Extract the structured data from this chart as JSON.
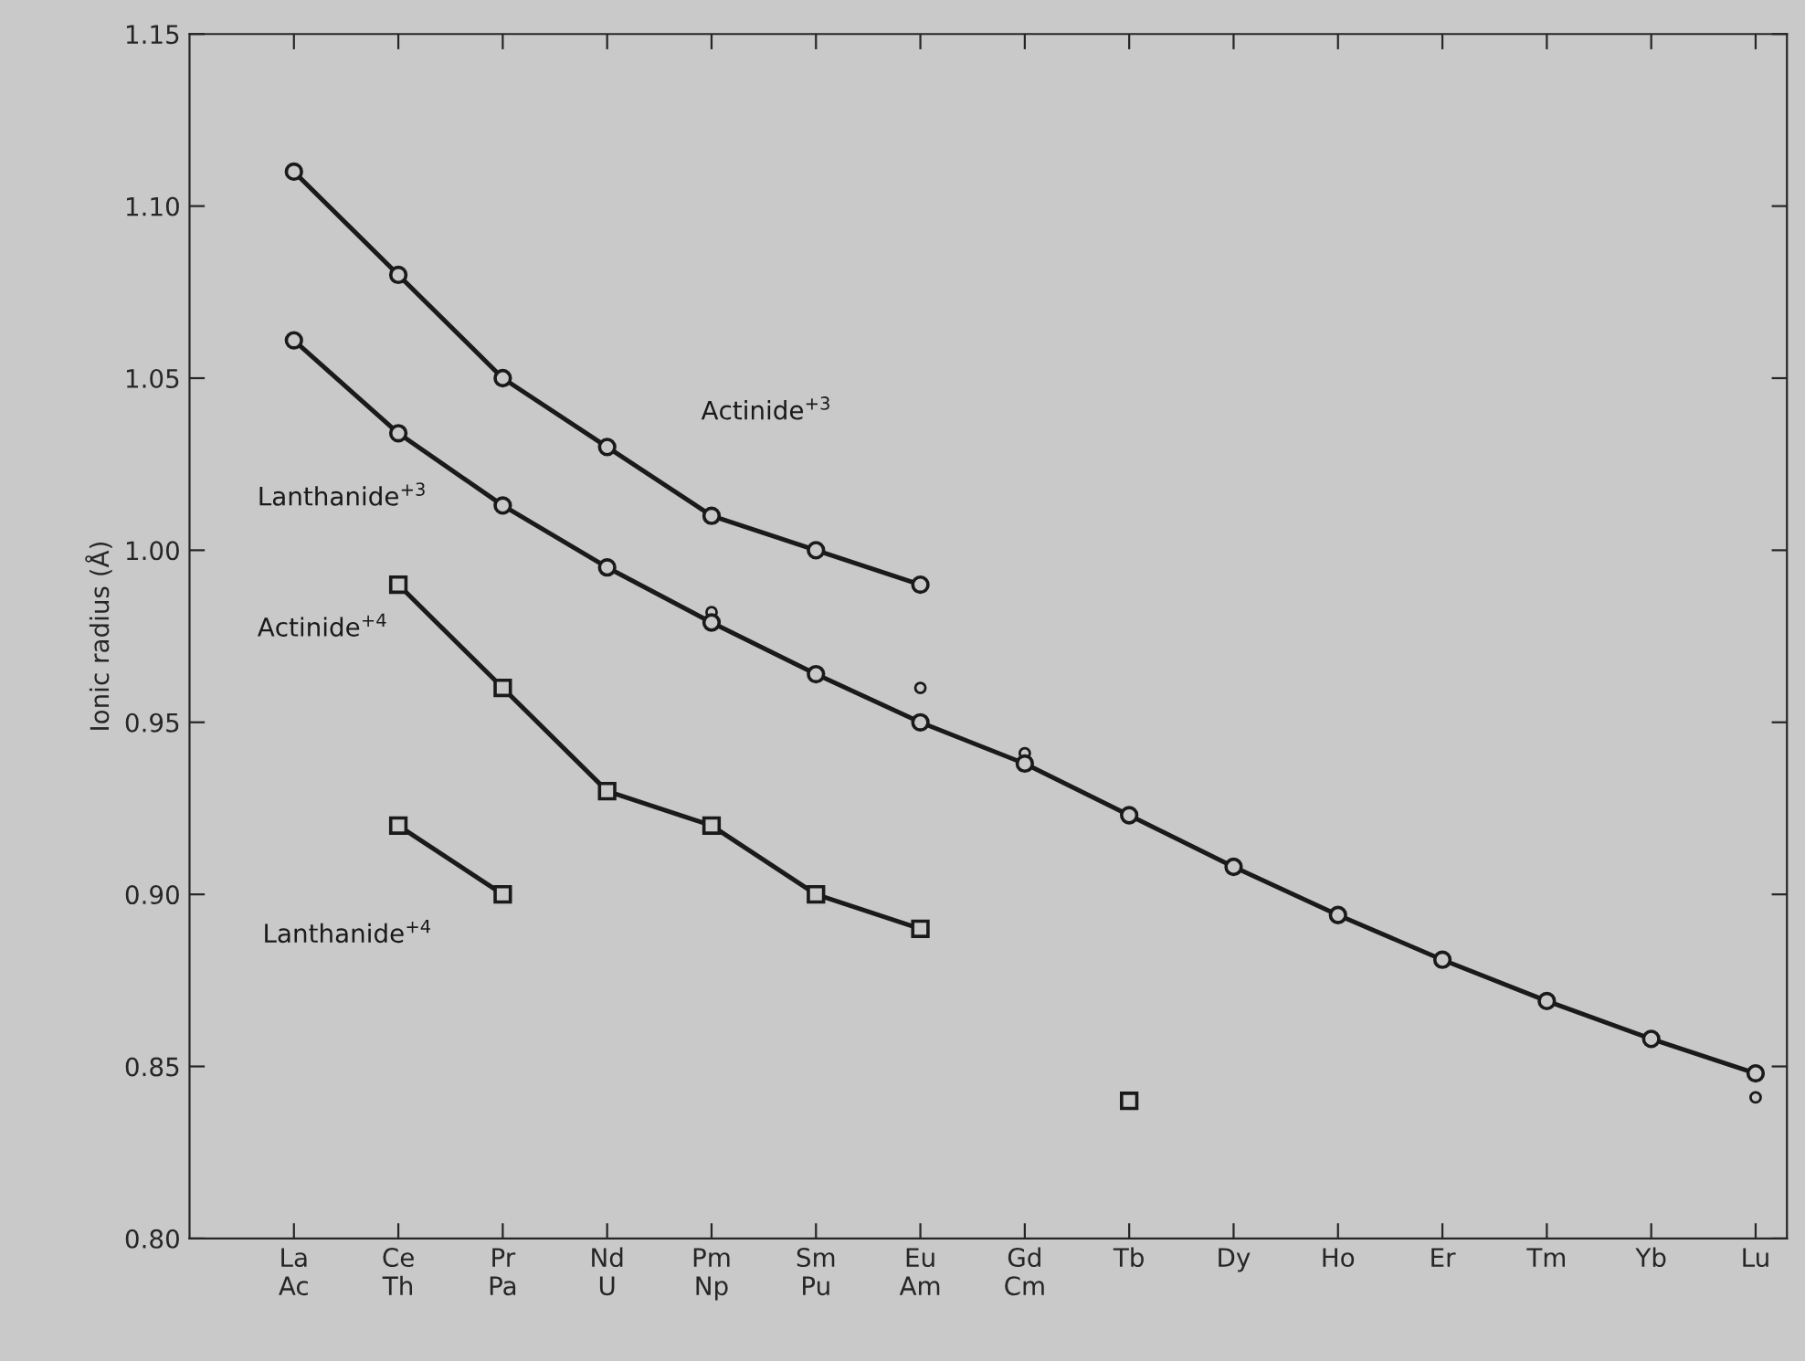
{
  "chart_data": {
    "type": "line",
    "ylabel": "Ionic radius (Å)",
    "categories": [
      "La\nAc",
      "Ce\nTh",
      "Pr\nPa",
      "Nd\nU",
      "Pm\nNp",
      "Sm\nPu",
      "Eu\nAm",
      "Gd\nCm",
      "Tb",
      "Dy",
      "Ho",
      "Er",
      "Tm",
      "Yb",
      "Lu"
    ],
    "series": [
      {
        "name": "Actinide$^{+3}$",
        "color": "#1a1a1a",
        "marker": "circle",
        "values": [
          1.11,
          1.08,
          1.05,
          1.03,
          1.01,
          1.0,
          0.99,
          null,
          null,
          null,
          null,
          null,
          null,
          null,
          null
        ]
      },
      {
        "name": "Lanthanide$^{+3}$",
        "color": "#1a1a1a",
        "marker": "circle",
        "values": [
          1.061,
          1.034,
          1.013,
          0.995,
          0.979,
          0.964,
          0.95,
          0.938,
          0.923,
          0.908,
          0.894,
          0.881,
          0.869,
          0.858,
          0.848
        ]
      },
      {
        "type": "scatter",
        "color": "#1a1a1a",
        "marker": "circle",
        "values": [
          null,
          null,
          null,
          null,
          0.982,
          null,
          0.96,
          0.941,
          null,
          null,
          null,
          null,
          null,
          null,
          0.841
        ]
      },
      {
        "name": "Actinide$^{+4}$",
        "color": "#1a1a1a",
        "marker": "square",
        "values": [
          null,
          0.99,
          0.96,
          0.93,
          0.92,
          0.9,
          0.89,
          null,
          null,
          null,
          null,
          null,
          null,
          null,
          null
        ]
      },
      {
        "name": "Lanthanide$^{+4}$",
        "color": "#1a1a1a",
        "marker": "square",
        "values": [
          null,
          0.92,
          0.9,
          null,
          null,
          null,
          null,
          null,
          0.84,
          null,
          null,
          null,
          null,
          null,
          null
        ]
      }
    ],
    "ylim": [
      0.8,
      1.15
    ],
    "yticks": [
      {
        "value": 0.8,
        "label": "0.80"
      },
      {
        "value": 0.85,
        "label": "0.85"
      },
      {
        "value": 0.9,
        "label": "0.90"
      },
      {
        "value": 0.95,
        "label": "0.95"
      },
      {
        "value": 1.0,
        "label": "1.00"
      },
      {
        "value": 1.05,
        "label": "1.05"
      },
      {
        "value": 1.1,
        "label": "1.10"
      },
      {
        "value": 1.15,
        "label": "1.15"
      }
    ],
    "grid": false,
    "legend": false
  }
}
